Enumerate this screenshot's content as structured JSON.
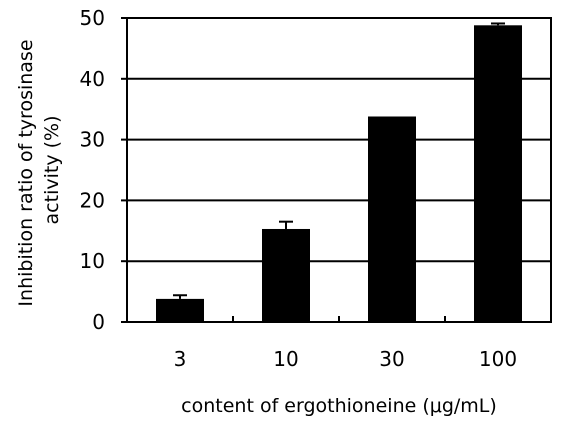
{
  "chart_data": {
    "type": "bar",
    "categories": [
      "3",
      "10",
      "30",
      "100"
    ],
    "values": [
      3.8,
      15.3,
      33.8,
      48.8
    ],
    "error_bars": [
      0.6,
      1.2,
      0.0,
      0.3
    ],
    "title": "",
    "xlabel": "content of ergothioneine (μg/mL)",
    "ylabel_lines": [
      "Inhibition ratio of tyrosinase",
      "activity (%)"
    ],
    "ylim": [
      0,
      50
    ],
    "yticks": [
      0,
      10,
      20,
      30,
      40,
      50
    ],
    "grid": true,
    "legend": "none",
    "bar_color": "#000000"
  }
}
